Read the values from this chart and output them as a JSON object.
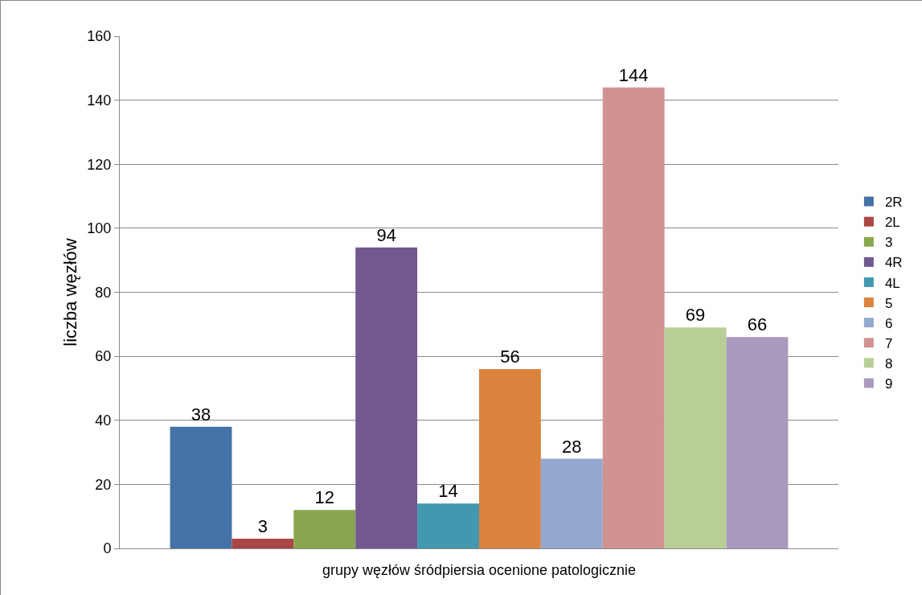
{
  "chart_data": {
    "type": "bar",
    "xlabel": "grupy węzłów śródpiersia ocenione patologicznie",
    "ylabel": "liczba węzłów",
    "categories": [
      null
    ],
    "series": [
      {
        "name": "2R",
        "color": "#4572a7",
        "values": [
          38
        ]
      },
      {
        "name": "2L",
        "color": "#aa4643",
        "values": [
          3
        ]
      },
      {
        "name": "3",
        "color": "#89a54e",
        "values": [
          12
        ]
      },
      {
        "name": "4R",
        "color": "#71588f",
        "values": [
          94
        ]
      },
      {
        "name": "4L",
        "color": "#4198af",
        "values": [
          14
        ]
      },
      {
        "name": "5",
        "color": "#db843d",
        "values": [
          56
        ]
      },
      {
        "name": "6",
        "color": "#93a9cf",
        "values": [
          28
        ]
      },
      {
        "name": "7",
        "color": "#d19392",
        "values": [
          144
        ]
      },
      {
        "name": "8",
        "color": "#b9cd96",
        "values": [
          69
        ]
      },
      {
        "name": "9",
        "color": "#a99bbd",
        "values": [
          66
        ]
      }
    ],
    "ylim": [
      0,
      160
    ],
    "yticks": [
      0,
      20,
      40,
      60,
      80,
      100,
      120,
      140,
      160
    ],
    "grid": "y",
    "legend": "right",
    "data_labels": true
  }
}
